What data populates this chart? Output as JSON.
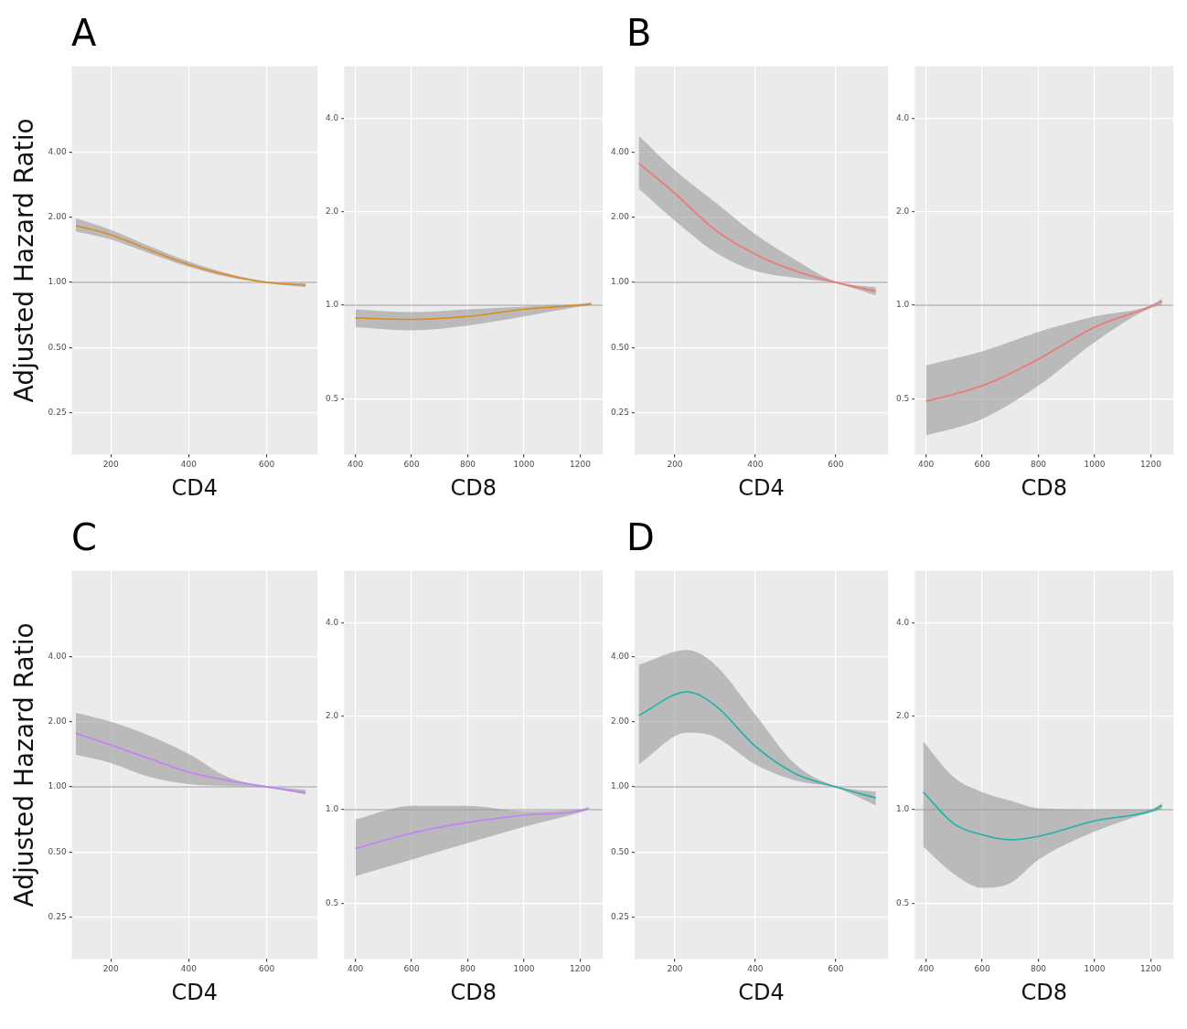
{
  "chart_data": [
    {
      "type": "line",
      "title": "A",
      "ylabel": "Adjusted Hazard Ratio",
      "xlabel": "CD4",
      "x": [
        110,
        200,
        300,
        400,
        500,
        600,
        700
      ],
      "series": [
        {
          "color": "#e08a1e",
          "values": [
            1.83,
            1.66,
            1.41,
            1.21,
            1.08,
            1.0,
            0.97
          ],
          "lower": [
            1.72,
            1.58,
            1.36,
            1.18,
            1.06,
            0.99,
            0.95
          ],
          "upper": [
            1.98,
            1.75,
            1.47,
            1.25,
            1.1,
            1.01,
            0.99
          ]
        }
      ],
      "xlim": [
        100,
        730
      ],
      "ylim": [
        0.16,
        10
      ],
      "xticks": [
        200,
        400,
        600
      ],
      "yticks": [
        {
          "value": 0.25,
          "label": "0.25"
        },
        {
          "value": 0.5,
          "label": "0.50"
        },
        {
          "value": 1,
          "label": "1.00"
        },
        {
          "value": 2,
          "label": "2.00"
        },
        {
          "value": 4,
          "label": "4.00"
        }
      ],
      "log": "y",
      "grid": true,
      "marker": "none",
      "ref_lines": [
        {
          "axis": "y",
          "value": 1
        }
      ]
    },
    {
      "type": "line",
      "xlabel": "CD8",
      "x": [
        400,
        600,
        800,
        1000,
        1200,
        1240
      ],
      "series": [
        {
          "color": "#e08a1e",
          "values": [
            0.91,
            0.9,
            0.92,
            0.97,
            1.0,
            1.01
          ],
          "lower": [
            0.85,
            0.83,
            0.86,
            0.92,
            0.99,
            1.0
          ],
          "upper": [
            0.97,
            0.95,
            0.97,
            0.99,
            1.01,
            1.02
          ]
        }
      ],
      "xlim": [
        360,
        1280
      ],
      "ylim": [
        0.33,
        5.9
      ],
      "xticks": [
        400,
        600,
        800,
        1000,
        1200
      ],
      "yticks": [
        {
          "value": 0.5,
          "label": "0.5"
        },
        {
          "value": 1,
          "label": "1.0"
        },
        {
          "value": 2,
          "label": "2.0"
        },
        {
          "value": 4,
          "label": "4.0"
        }
      ],
      "log": "y",
      "grid": true,
      "marker": "none",
      "ref_lines": [
        {
          "axis": "y",
          "value": 1
        }
      ]
    },
    {
      "type": "line",
      "title": "B",
      "xlabel": "CD4",
      "x": [
        110,
        200,
        300,
        400,
        500,
        600,
        700
      ],
      "series": [
        {
          "color": "#f0766e",
          "values": [
            3.56,
            2.58,
            1.75,
            1.35,
            1.13,
            1.0,
            0.91
          ],
          "lower": [
            2.71,
            1.93,
            1.38,
            1.13,
            1.05,
            0.99,
            0.87
          ],
          "upper": [
            4.77,
            3.3,
            2.35,
            1.67,
            1.27,
            1.01,
            0.95
          ]
        }
      ],
      "xlim": [
        100,
        730
      ],
      "ylim": [
        0.16,
        10
      ],
      "xticks": [
        200,
        400,
        600
      ],
      "yticks": [
        {
          "value": 0.25,
          "label": "0.25"
        },
        {
          "value": 0.5,
          "label": "0.50"
        },
        {
          "value": 1,
          "label": "1.00"
        },
        {
          "value": 2,
          "label": "2.00"
        },
        {
          "value": 4,
          "label": "4.00"
        }
      ],
      "log": "y",
      "grid": true,
      "marker": "none",
      "ref_lines": [
        {
          "axis": "y",
          "value": 1
        }
      ]
    },
    {
      "type": "line",
      "xlabel": "CD8",
      "x": [
        400,
        600,
        800,
        1000,
        1200,
        1240
      ],
      "series": [
        {
          "color": "#f0766e",
          "values": [
            0.49,
            0.55,
            0.67,
            0.85,
            0.99,
            1.03
          ],
          "lower": [
            0.38,
            0.43,
            0.55,
            0.76,
            0.98,
            1.0
          ],
          "upper": [
            0.64,
            0.71,
            0.82,
            0.92,
            1.0,
            1.05
          ]
        }
      ],
      "xlim": [
        360,
        1280
      ],
      "ylim": [
        0.33,
        5.9
      ],
      "xticks": [
        400,
        600,
        800,
        1000,
        1200
      ],
      "yticks": [
        {
          "value": 0.5,
          "label": "0.5"
        },
        {
          "value": 1,
          "label": "1.0"
        },
        {
          "value": 2,
          "label": "2.0"
        },
        {
          "value": 4,
          "label": "4.0"
        }
      ],
      "log": "y",
      "grid": true,
      "marker": "none",
      "ref_lines": [
        {
          "axis": "y",
          "value": 1
        }
      ]
    },
    {
      "type": "line",
      "title": "C",
      "ylabel": "Adjusted Hazard Ratio",
      "xlabel": "CD4",
      "x": [
        110,
        200,
        300,
        400,
        500,
        600,
        700
      ],
      "series": [
        {
          "color": "#c77cff",
          "values": [
            1.77,
            1.56,
            1.35,
            1.17,
            1.07,
            1.0,
            0.94
          ],
          "lower": [
            1.41,
            1.29,
            1.11,
            1.03,
            1.01,
            0.99,
            0.92
          ],
          "upper": [
            2.2,
            2.0,
            1.72,
            1.42,
            1.11,
            1.01,
            0.97
          ]
        }
      ],
      "xlim": [
        100,
        730
      ],
      "ylim": [
        0.16,
        10
      ],
      "xticks": [
        200,
        400,
        600
      ],
      "yticks": [
        {
          "value": 0.25,
          "label": "0.25"
        },
        {
          "value": 0.5,
          "label": "0.50"
        },
        {
          "value": 1,
          "label": "1.00"
        },
        {
          "value": 2,
          "label": "2.00"
        },
        {
          "value": 4,
          "label": "4.00"
        }
      ],
      "log": "y",
      "grid": true,
      "marker": "none",
      "ref_lines": [
        {
          "axis": "y",
          "value": 1
        }
      ]
    },
    {
      "type": "line",
      "xlabel": "CD8",
      "x": [
        400,
        600,
        800,
        1000,
        1200,
        1230
      ],
      "series": [
        {
          "color": "#c77cff",
          "values": [
            0.75,
            0.84,
            0.91,
            0.96,
            0.99,
            1.01
          ],
          "lower": [
            0.61,
            0.69,
            0.78,
            0.88,
            0.98,
            1.0
          ],
          "upper": [
            0.93,
            1.03,
            1.03,
            0.99,
            1.0,
            1.02
          ]
        }
      ],
      "xlim": [
        360,
        1280
      ],
      "ylim": [
        0.33,
        5.9
      ],
      "xticks": [
        400,
        600,
        800,
        1000,
        1200
      ],
      "yticks": [
        {
          "value": 0.5,
          "label": "0.5"
        },
        {
          "value": 1,
          "label": "1.0"
        },
        {
          "value": 2,
          "label": "2.0"
        },
        {
          "value": 4,
          "label": "4.0"
        }
      ],
      "log": "y",
      "grid": true,
      "marker": "none",
      "ref_lines": [
        {
          "axis": "y",
          "value": 1
        }
      ]
    },
    {
      "type": "line",
      "title": "D",
      "xlabel": "CD4",
      "x": [
        110,
        230,
        300,
        400,
        500,
        600,
        700
      ],
      "series": [
        {
          "color": "#20b2aa",
          "values": [
            2.14,
            2.75,
            2.38,
            1.54,
            1.15,
            1.0,
            0.89
          ],
          "lower": [
            1.27,
            1.78,
            1.7,
            1.27,
            1.07,
            0.99,
            0.82
          ],
          "upper": [
            3.67,
            4.3,
            3.67,
            2.16,
            1.27,
            1.01,
            0.95
          ]
        }
      ],
      "xlim": [
        100,
        730
      ],
      "ylim": [
        0.16,
        10
      ],
      "xticks": [
        200,
        400,
        600
      ],
      "yticks": [
        {
          "value": 0.25,
          "label": "0.25"
        },
        {
          "value": 0.5,
          "label": "0.50"
        },
        {
          "value": 1,
          "label": "1.00"
        },
        {
          "value": 2,
          "label": "2.00"
        },
        {
          "value": 4,
          "label": "4.00"
        }
      ],
      "log": "y",
      "grid": true,
      "marker": "none",
      "ref_lines": [
        {
          "axis": "y",
          "value": 1
        }
      ]
    },
    {
      "type": "line",
      "xlabel": "CD8",
      "x": [
        390,
        500,
        600,
        700,
        800,
        1000,
        1200,
        1240
      ],
      "series": [
        {
          "color": "#20b2aa",
          "values": [
            1.14,
            0.9,
            0.83,
            0.8,
            0.82,
            0.92,
            0.99,
            1.03
          ],
          "lower": [
            0.76,
            0.62,
            0.56,
            0.58,
            0.69,
            0.85,
            0.98,
            1.0
          ],
          "upper": [
            1.66,
            1.27,
            1.14,
            1.07,
            1.01,
            1.0,
            1.0,
            1.05
          ]
        }
      ],
      "xlim": [
        360,
        1280
      ],
      "ylim": [
        0.33,
        5.9
      ],
      "xticks": [
        400,
        600,
        800,
        1000,
        1200
      ],
      "yticks": [
        {
          "value": 0.5,
          "label": "0.5"
        },
        {
          "value": 1,
          "label": "1.0"
        },
        {
          "value": 2,
          "label": "2.0"
        },
        {
          "value": 4,
          "label": "4.0"
        }
      ],
      "log": "y",
      "grid": true,
      "marker": "none",
      "ref_lines": [
        {
          "axis": "y",
          "value": 1
        }
      ]
    }
  ]
}
